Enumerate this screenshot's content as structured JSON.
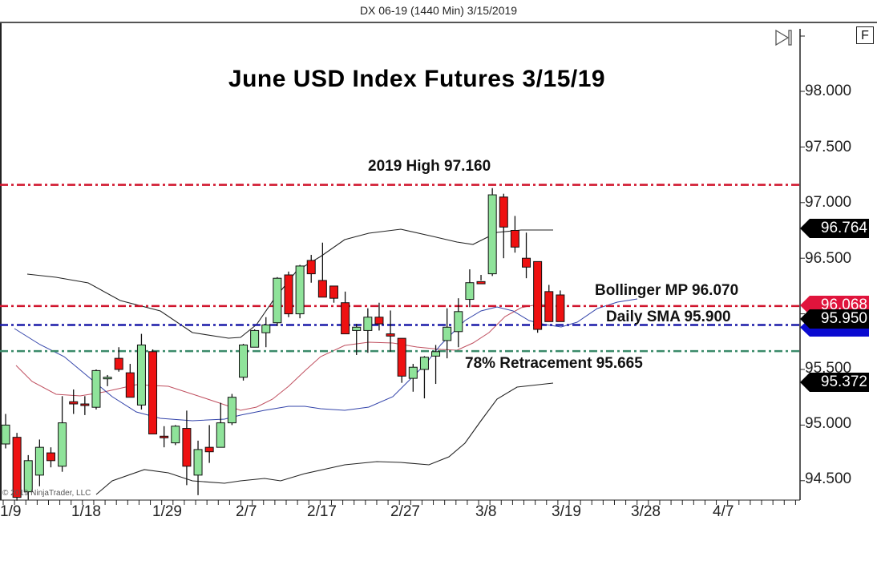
{
  "window": {
    "title": "DX 06-19 (1440 Min)  3/15/2019",
    "f_button_label": "F",
    "copyright": "© 2019 NinjaTrader, LLC"
  },
  "chart_data": {
    "type": "candlestick",
    "title": "June USD Index Futures 3/15/19",
    "instrument": "DX 06-19",
    "interval": "1440 Min",
    "xlabel": "",
    "ylabel": "",
    "ylim": [
      94.33,
      98.6
    ],
    "grid": false,
    "y_ticks": [
      "98.000",
      "97.500",
      "97.000",
      "96.500",
      "96.000",
      "95.500",
      "95.000",
      "94.500"
    ],
    "x_ticks": [
      "1/9",
      "1/18",
      "1/29",
      "2/7",
      "2/17",
      "2/27",
      "3/8",
      "3/19",
      "3/28",
      "4/7"
    ],
    "candles": [
      {
        "o": 94.83,
        "h": 95.1,
        "l": 94.79,
        "c": 95.0
      },
      {
        "o": 94.89,
        "h": 94.93,
        "l": 94.32,
        "c": 94.35
      },
      {
        "o": 94.4,
        "h": 94.73,
        "l": 94.33,
        "c": 94.68
      },
      {
        "o": 94.55,
        "h": 94.87,
        "l": 94.45,
        "c": 94.8
      },
      {
        "o": 94.75,
        "h": 94.8,
        "l": 94.62,
        "c": 94.68
      },
      {
        "o": 94.63,
        "h": 95.26,
        "l": 94.58,
        "c": 95.02
      },
      {
        "o": 95.21,
        "h": 95.32,
        "l": 95.1,
        "c": 95.19
      },
      {
        "o": 95.19,
        "h": 95.26,
        "l": 95.09,
        "c": 95.18
      },
      {
        "o": 95.16,
        "h": 95.5,
        "l": 95.14,
        "c": 95.49
      },
      {
        "o": 95.43,
        "h": 95.45,
        "l": 95.35,
        "c": 95.43
      },
      {
        "o": 95.6,
        "h": 95.7,
        "l": 95.48,
        "c": 95.5
      },
      {
        "o": 95.47,
        "h": 95.55,
        "l": 95.3,
        "c": 95.25
      },
      {
        "o": 95.18,
        "h": 95.82,
        "l": 95.14,
        "c": 95.72
      },
      {
        "o": 95.66,
        "h": 95.68,
        "l": 94.92,
        "c": 94.92
      },
      {
        "o": 94.9,
        "h": 94.99,
        "l": 94.8,
        "c": 94.89
      },
      {
        "o": 94.84,
        "h": 95.0,
        "l": 94.82,
        "c": 94.99
      },
      {
        "o": 94.97,
        "h": 95.13,
        "l": 94.46,
        "c": 94.63
      },
      {
        "o": 94.55,
        "h": 94.86,
        "l": 94.37,
        "c": 94.78
      },
      {
        "o": 94.8,
        "h": 95.0,
        "l": 94.66,
        "c": 94.76
      },
      {
        "o": 94.8,
        "h": 95.2,
        "l": 94.8,
        "c": 95.02
      },
      {
        "o": 95.02,
        "h": 95.28,
        "l": 95.0,
        "c": 95.25
      },
      {
        "o": 95.43,
        "h": 95.73,
        "l": 95.4,
        "c": 95.72
      },
      {
        "o": 95.7,
        "h": 95.86,
        "l": 95.7,
        "c": 95.85
      },
      {
        "o": 95.83,
        "h": 95.97,
        "l": 95.7,
        "c": 95.9
      },
      {
        "o": 95.92,
        "h": 96.33,
        "l": 95.89,
        "c": 96.32
      },
      {
        "o": 96.35,
        "h": 96.38,
        "l": 95.97,
        "c": 96.0
      },
      {
        "o": 96.0,
        "h": 96.44,
        "l": 95.96,
        "c": 96.43
      },
      {
        "o": 96.48,
        "h": 96.53,
        "l": 96.28,
        "c": 96.36
      },
      {
        "o": 96.3,
        "h": 96.64,
        "l": 96.16,
        "c": 96.15
      },
      {
        "o": 96.25,
        "h": 96.25,
        "l": 96.1,
        "c": 96.14
      },
      {
        "o": 96.1,
        "h": 96.2,
        "l": 95.94,
        "c": 95.82
      },
      {
        "o": 95.85,
        "h": 95.91,
        "l": 95.63,
        "c": 95.88
      },
      {
        "o": 95.85,
        "h": 96.05,
        "l": 95.65,
        "c": 95.97
      },
      {
        "o": 95.97,
        "h": 96.1,
        "l": 95.85,
        "c": 95.91
      },
      {
        "o": 95.82,
        "h": 96.03,
        "l": 95.66,
        "c": 95.8
      },
      {
        "o": 95.78,
        "h": 95.77,
        "l": 95.38,
        "c": 95.44
      },
      {
        "o": 95.42,
        "h": 95.55,
        "l": 95.3,
        "c": 95.52
      },
      {
        "o": 95.5,
        "h": 95.62,
        "l": 95.24,
        "c": 95.61
      },
      {
        "o": 95.62,
        "h": 95.72,
        "l": 95.37,
        "c": 95.66
      },
      {
        "o": 95.76,
        "h": 96.05,
        "l": 95.6,
        "c": 95.88
      },
      {
        "o": 95.84,
        "h": 96.14,
        "l": 95.7,
        "c": 96.02
      },
      {
        "o": 96.13,
        "h": 96.4,
        "l": 96.06,
        "c": 96.28
      },
      {
        "o": 96.29,
        "h": 96.35,
        "l": 96.3,
        "c": 96.27
      },
      {
        "o": 96.36,
        "h": 97.13,
        "l": 96.34,
        "c": 97.07
      },
      {
        "o": 97.05,
        "h": 97.08,
        "l": 96.5,
        "c": 96.78
      },
      {
        "o": 96.75,
        "h": 96.88,
        "l": 96.55,
        "c": 96.6
      },
      {
        "o": 96.5,
        "h": 96.73,
        "l": 96.32,
        "c": 96.42
      },
      {
        "o": 96.47,
        "h": 96.47,
        "l": 95.83,
        "c": 95.86
      },
      {
        "o": 96.2,
        "h": 96.26,
        "l": 95.93,
        "c": 95.93
      },
      {
        "o": 96.17,
        "h": 96.21,
        "l": 95.94,
        "c": 95.93
      }
    ],
    "indicators": {
      "bollinger_upper_label": "Bollinger upper band",
      "bollinger_middle_label": "Bollinger MP",
      "bollinger_lower_label": "Bollinger lower band",
      "sma_label": "Daily SMA"
    },
    "horizontal_lines": [
      {
        "label": "2019 High 97.160",
        "value": 97.16,
        "color": "#d0142c"
      },
      {
        "label": "Bollinger MP 96.070",
        "value": 96.07,
        "color": "#d0142c"
      },
      {
        "label": "Daily SMA 95.900",
        "value": 95.9,
        "color": "#1a1aa8"
      },
      {
        "label": "78% Retracement 95.665",
        "value": 95.665,
        "color": "#3a8a6a"
      }
    ],
    "price_markers": [
      {
        "value": "96.764",
        "bg": "#000000"
      },
      {
        "value": "96.068",
        "bg": "#e0143c"
      },
      {
        "value": "95.950",
        "bg": "#000000"
      },
      {
        "value": "95.372",
        "bg": "#000000"
      }
    ],
    "colors": {
      "up_candle": "#8fe39a",
      "down_candle": "#ee1111",
      "wick": "#111111",
      "bollinger_band": "#222222",
      "bollinger_middle": "#c05060",
      "sma": "#3344aa"
    }
  },
  "annotations": {
    "title": "June USD Index Futures 3/15/19",
    "high": "2019 High 97.160",
    "bollinger": "Bollinger MP 96.070",
    "sma": "Daily SMA 95.900",
    "retracement": "78% Retracement 95.665"
  }
}
